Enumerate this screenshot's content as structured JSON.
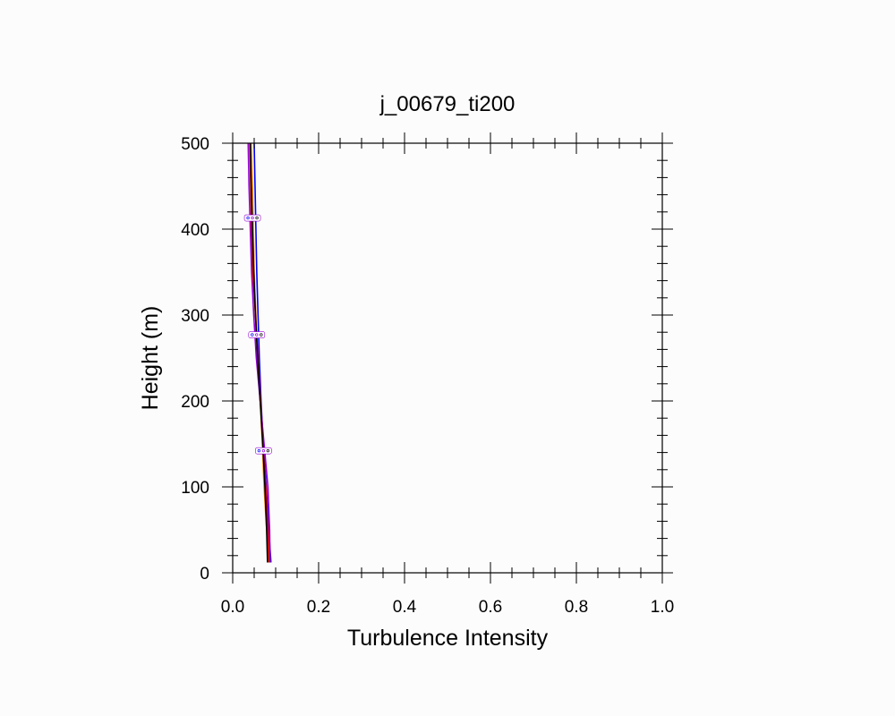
{
  "chart_data": {
    "type": "line",
    "title": "j_00679_ti200",
    "xlabel": "Turbulence Intensity",
    "ylabel": "Height (m)",
    "xlim": [
      0,
      1.0
    ],
    "ylim": [
      0,
      500
    ],
    "x_ticks": [
      "0.0",
      "0.2",
      "0.4",
      "0.6",
      "0.8",
      "1.0"
    ],
    "y_ticks": [
      "0",
      "100",
      "200",
      "300",
      "400",
      "500"
    ],
    "grid": false,
    "legend": "none",
    "series": [
      {
        "color": "#0000ff",
        "points": [
          [
            0.089,
            12
          ],
          [
            0.084,
            50
          ],
          [
            0.078,
            100
          ],
          [
            0.071,
            150
          ],
          [
            0.066,
            200
          ],
          [
            0.062,
            250
          ],
          [
            0.059,
            300
          ],
          [
            0.056,
            350
          ],
          [
            0.054,
            400
          ],
          [
            0.052,
            450
          ],
          [
            0.05,
            500
          ]
        ]
      },
      {
        "color": "#ff8c00",
        "points": [
          [
            0.083,
            12
          ],
          [
            0.079,
            50
          ],
          [
            0.073,
            100
          ],
          [
            0.069,
            150
          ],
          [
            0.064,
            200
          ],
          [
            0.058,
            250
          ],
          [
            0.054,
            300
          ],
          [
            0.05,
            350
          ],
          [
            0.048,
            400
          ],
          [
            0.046,
            450
          ],
          [
            0.043,
            500
          ]
        ]
      },
      {
        "color": "#9400d3",
        "points": [
          [
            0.087,
            12
          ],
          [
            0.086,
            50
          ],
          [
            0.082,
            100
          ],
          [
            0.073,
            150
          ],
          [
            0.064,
            200
          ],
          [
            0.055,
            250
          ],
          [
            0.049,
            300
          ],
          [
            0.044,
            350
          ],
          [
            0.041,
            400
          ],
          [
            0.038,
            450
          ],
          [
            0.036,
            500
          ]
        ]
      },
      {
        "color": "#e00000",
        "points": [
          [
            0.085,
            12
          ],
          [
            0.082,
            50
          ],
          [
            0.077,
            100
          ],
          [
            0.07,
            150
          ],
          [
            0.065,
            200
          ],
          [
            0.059,
            250
          ],
          [
            0.053,
            300
          ],
          [
            0.047,
            350
          ],
          [
            0.044,
            400
          ],
          [
            0.042,
            450
          ],
          [
            0.04,
            500
          ]
        ]
      },
      {
        "color": "#000000",
        "points": [
          [
            0.081,
            12
          ],
          [
            0.079,
            50
          ],
          [
            0.075,
            100
          ],
          [
            0.07,
            150
          ],
          [
            0.064,
            200
          ],
          [
            0.058,
            250
          ],
          [
            0.053,
            300
          ],
          [
            0.049,
            350
          ],
          [
            0.046,
            400
          ],
          [
            0.043,
            450
          ],
          [
            0.041,
            500
          ]
        ]
      }
    ],
    "line_label_heights": [
      142,
      277,
      413
    ]
  }
}
